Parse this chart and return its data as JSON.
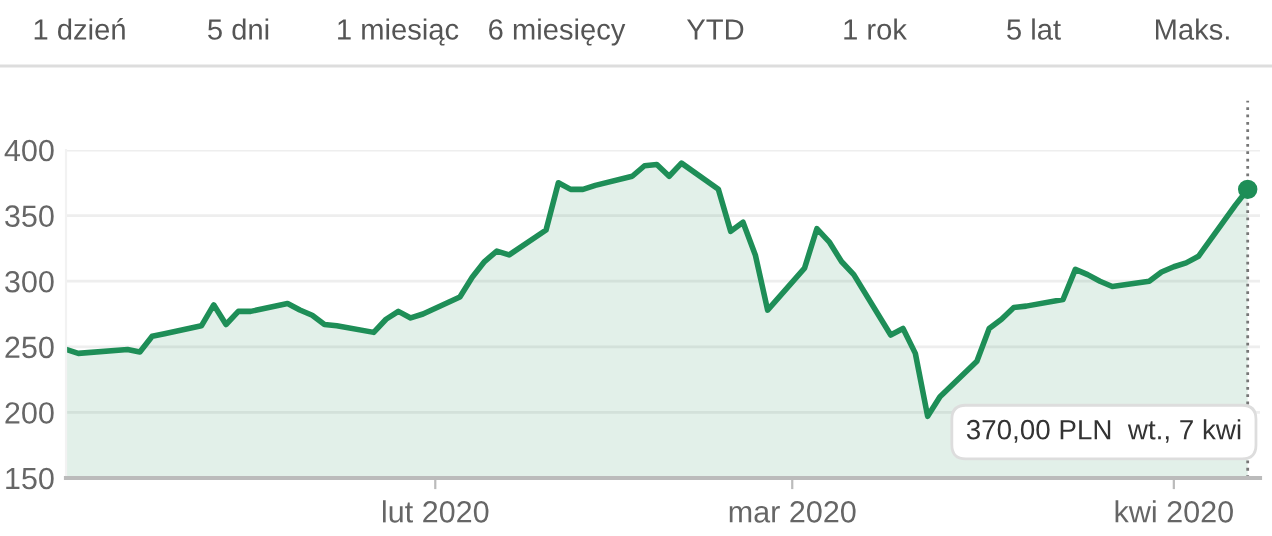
{
  "chart_data": {
    "type": "area",
    "x": [
      "2020-01-02",
      "2020-01-03",
      "2020-01-07",
      "2020-01-08",
      "2020-01-09",
      "2020-01-10",
      "2020-01-13",
      "2020-01-14",
      "2020-01-15",
      "2020-01-16",
      "2020-01-17",
      "2020-01-20",
      "2020-01-21",
      "2020-01-22",
      "2020-01-23",
      "2020-01-24",
      "2020-01-27",
      "2020-01-28",
      "2020-01-29",
      "2020-01-30",
      "2020-01-31",
      "2020-02-03",
      "2020-02-04",
      "2020-02-05",
      "2020-02-06",
      "2020-02-07",
      "2020-02-10",
      "2020-02-11",
      "2020-02-12",
      "2020-02-13",
      "2020-02-14",
      "2020-02-17",
      "2020-02-18",
      "2020-02-19",
      "2020-02-20",
      "2020-02-21",
      "2020-02-24",
      "2020-02-25",
      "2020-02-26",
      "2020-02-27",
      "2020-02-28",
      "2020-03-02",
      "2020-03-03",
      "2020-03-04",
      "2020-03-05",
      "2020-03-06",
      "2020-03-09",
      "2020-03-10",
      "2020-03-11",
      "2020-03-12",
      "2020-03-13",
      "2020-03-16",
      "2020-03-17",
      "2020-03-18",
      "2020-03-19",
      "2020-03-20",
      "2020-03-23",
      "2020-03-24",
      "2020-03-25",
      "2020-03-26",
      "2020-03-27",
      "2020-03-30",
      "2020-03-31",
      "2020-04-01",
      "2020-04-02",
      "2020-04-03",
      "2020-04-06",
      "2020-04-07"
    ],
    "series": [
      {
        "color": "#1e8e57",
        "values": [
          248,
          245,
          248,
          246,
          258,
          260,
          266,
          282,
          267,
          277,
          277,
          283,
          278,
          274,
          267,
          266,
          261,
          271,
          277,
          272,
          275,
          288,
          303,
          315,
          323,
          320,
          339,
          375,
          370,
          370,
          373,
          380,
          388,
          389,
          380,
          390,
          370,
          338,
          345,
          320,
          278,
          310,
          340,
          330,
          315,
          305,
          259,
          264,
          245,
          197,
          212,
          239,
          264,
          271,
          280,
          281,
          286,
          309,
          305,
          300,
          296,
          300,
          307,
          311,
          314,
          319,
          358,
          370
        ]
      }
    ],
    "xlim": [
      "2020-01-02",
      "2020-04-08"
    ],
    "xticks": [
      {
        "value": "2020-02-01",
        "label": "lut 2020"
      },
      {
        "value": "2020-03-01",
        "label": "mar 2020"
      },
      {
        "value": "2020-04-01",
        "label": "kwi 2020"
      }
    ],
    "ylim": [
      150,
      400
    ],
    "yticks": [
      150,
      200,
      250,
      300,
      350,
      400
    ],
    "grid": "y",
    "ref_lines": [
      {
        "axis": "x",
        "value": "2020-04-07",
        "line_style": "dotted",
        "color": "#777777"
      }
    ],
    "annotations": [
      "1 dzień",
      "5 dni",
      "1 miesiąc",
      "6 miesięcy",
      "YTD",
      "1 rok",
      "5 lat",
      "Maks.",
      "370,00 PLN  wt., 7 kwi"
    ]
  }
}
